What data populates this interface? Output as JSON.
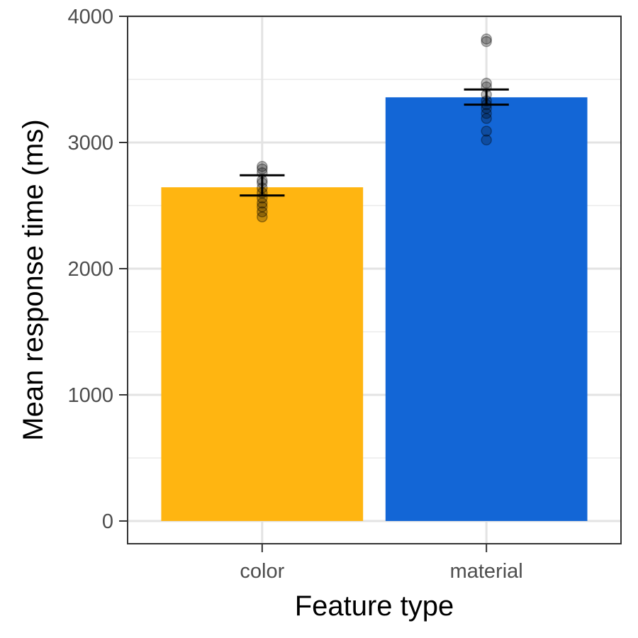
{
  "chart_data": {
    "type": "bar",
    "xlabel": "Feature type",
    "ylabel": "Mean response time (ms)",
    "categories": [
      "color",
      "material"
    ],
    "values": [
      2645,
      3358
    ],
    "error_bars": [
      {
        "lower": 2580,
        "upper": 2740
      },
      {
        "lower": 3300,
        "upper": 3420
      }
    ],
    "points": [
      [
        2410,
        2450,
        2490,
        2520,
        2560,
        2600,
        2640,
        2680,
        2700,
        2760,
        2790,
        2810
      ],
      [
        3020,
        3090,
        3190,
        3230,
        3270,
        3300,
        3330,
        3380,
        3440,
        3470,
        3800,
        3820
      ]
    ],
    "colors": [
      "#FFB511",
      "#1366D6"
    ],
    "yticks": [
      0,
      1000,
      2000,
      3000,
      4000
    ],
    "ylim": [
      -180,
      4000
    ],
    "grid": true
  }
}
